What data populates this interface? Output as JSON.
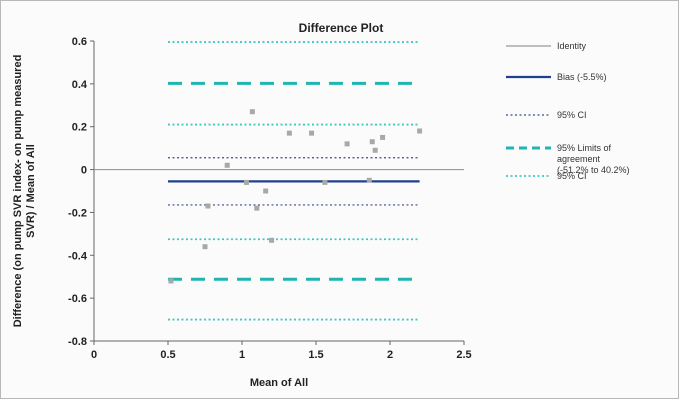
{
  "chart_data": {
    "type": "scatter",
    "title": "Difference Plot",
    "xlabel": "Mean of All",
    "ylabel_lines": [
      "Difference (on pump SVR index- on pump measured",
      "SVR) / Mean of All"
    ],
    "xlim": [
      0,
      2.5
    ],
    "ylim": [
      -0.8,
      0.6
    ],
    "xticks": [
      0,
      0.5,
      1,
      1.5,
      2,
      2.5
    ],
    "xtick_labels": [
      "0",
      "0.5",
      "1",
      "1.5",
      "2",
      "2.5"
    ],
    "yticks": [
      -0.8,
      -0.6,
      -0.4,
      -0.2,
      0,
      0.2,
      0.4,
      0.6
    ],
    "ytick_labels": [
      "-0.8",
      "-0.6",
      "-0.4",
      "-0.2",
      "0",
      "0.2",
      "0.4",
      "0.6"
    ],
    "grid": false,
    "legend_position": "right",
    "points": {
      "color": "#a8a8a8",
      "x": [
        0.52,
        0.77,
        0.75,
        0.9,
        1.03,
        1.07,
        1.1,
        1.16,
        1.2,
        1.32,
        1.47,
        1.56,
        1.71,
        1.86,
        1.88,
        1.9,
        1.95,
        2.2
      ],
      "y": [
        -0.52,
        -0.17,
        -0.36,
        0.02,
        -0.06,
        0.27,
        -0.18,
        -0.1,
        -0.33,
        0.17,
        0.17,
        -0.06,
        0.12,
        -0.05,
        0.13,
        0.09,
        0.15,
        0.18
      ]
    },
    "series": [
      {
        "name": "Identity",
        "y": 0,
        "style": "solid",
        "color": "#999999",
        "width": 1.2,
        "x_range": [
          0,
          2.5
        ]
      },
      {
        "name": "Bias (-5.5%)",
        "y": -0.055,
        "style": "solid",
        "color": "#1f3f8f",
        "width": 2.2,
        "x_range": [
          0.5,
          2.2
        ]
      },
      {
        "name": "95% CI",
        "y": 0.055,
        "style": "dotted",
        "color": "#3a4a8a",
        "width": 1.2,
        "x_range": [
          0.5,
          2.2
        ]
      },
      {
        "name": "95% CI",
        "y": -0.165,
        "style": "dotted",
        "color": "#3a4a8a",
        "width": 1.2,
        "x_range": [
          0.5,
          2.2
        ],
        "show_in_legend": false
      },
      {
        "name": "95% Limits of agreement (-51.2% to 40.2%)",
        "y": 0.402,
        "style": "dashed",
        "color": "#1fb5b0",
        "width": 3,
        "x_range": [
          0.5,
          2.2
        ]
      },
      {
        "name": "95% Limits of agreement (-51.2% to 40.2%)",
        "y": -0.512,
        "style": "dashed",
        "color": "#1fb5b0",
        "width": 3,
        "x_range": [
          0.5,
          2.2
        ],
        "show_in_legend": false
      },
      {
        "name": "95% CI",
        "y": 0.595,
        "style": "dotted",
        "color": "#44c6c3",
        "width": 1.8,
        "x_range": [
          0.5,
          2.2
        ]
      },
      {
        "name": "95% CI",
        "y": 0.21,
        "style": "dotted",
        "color": "#44c6c3",
        "width": 1.8,
        "x_range": [
          0.5,
          2.2
        ],
        "show_in_legend": false
      },
      {
        "name": "95% CI",
        "y": -0.325,
        "style": "dotted",
        "color": "#44c6c3",
        "width": 1.8,
        "x_range": [
          0.5,
          2.2
        ],
        "show_in_legend": false
      },
      {
        "name": "95% CI",
        "y": -0.7,
        "style": "dotted",
        "color": "#44c6c3",
        "width": 1.8,
        "x_range": [
          0.5,
          2.2
        ],
        "show_in_legend": false
      }
    ],
    "legend": [
      {
        "lines": [
          "Identity"
        ],
        "style": "solid",
        "color": "#999999",
        "width": 1.2
      },
      {
        "lines": [
          "Bias (-5.5%)"
        ],
        "style": "solid",
        "color": "#1f3f8f",
        "width": 2.2
      },
      {
        "lines": [
          "95% CI"
        ],
        "style": "dotted",
        "color": "#3a4a8a",
        "width": 1.2
      },
      {
        "lines": [
          "95% Limits of",
          "agreement",
          "(-51.2% to 40.2%)"
        ],
        "style": "dashed",
        "color": "#1fb5b0",
        "width": 3
      },
      {
        "lines": [
          "95% CI"
        ],
        "style": "dotted",
        "color": "#44c6c3",
        "width": 1.8
      }
    ]
  }
}
